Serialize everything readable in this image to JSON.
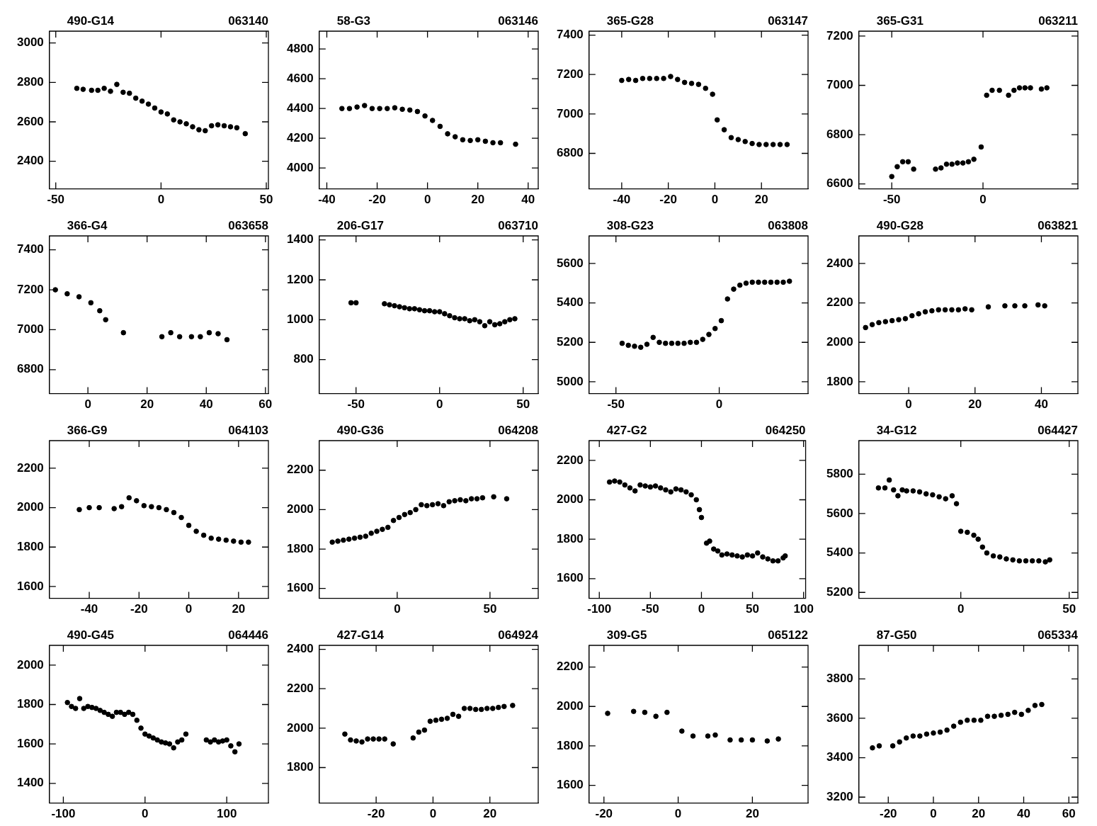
{
  "chart_data": [
    {
      "type": "scatter",
      "title": "490-G14",
      "subtitle": "063140",
      "color": "#000000",
      "marker": "circle",
      "xlim": [
        -53,
        51
      ],
      "ylim": [
        2260,
        3060
      ],
      "xticks": [
        -50,
        0,
        50
      ],
      "yticks": [
        2400,
        2600,
        2800,
        3000
      ],
      "x": [
        -40,
        -37,
        -33,
        -30,
        -27,
        -24,
        -21,
        -18,
        -15,
        -12,
        -9,
        -6,
        -3,
        0,
        3,
        6,
        9,
        12,
        15,
        18,
        21,
        24,
        27,
        30,
        33,
        36,
        40
      ],
      "values": [
        2770,
        2765,
        2760,
        2760,
        2770,
        2755,
        2790,
        2750,
        2745,
        2720,
        2705,
        2690,
        2670,
        2650,
        2640,
        2610,
        2600,
        2590,
        2575,
        2560,
        2555,
        2580,
        2585,
        2580,
        2575,
        2570,
        2540
      ]
    },
    {
      "type": "scatter",
      "title": "58-G3",
      "subtitle": "063146",
      "color": "#000000",
      "marker": "circle",
      "xlim": [
        -43,
        44
      ],
      "ylim": [
        3860,
        4920
      ],
      "xticks": [
        -40,
        -20,
        0,
        20,
        40
      ],
      "yticks": [
        4000,
        4200,
        4400,
        4600,
        4800
      ],
      "x": [
        -34,
        -31,
        -28,
        -25,
        -22,
        -19,
        -16,
        -13,
        -10,
        -7,
        -4,
        -1,
        2,
        5,
        8,
        11,
        14,
        17,
        20,
        23,
        26,
        29,
        35
      ],
      "values": [
        4400,
        4400,
        4410,
        4420,
        4400,
        4400,
        4400,
        4405,
        4395,
        4390,
        4380,
        4350,
        4320,
        4280,
        4230,
        4210,
        4190,
        4185,
        4190,
        4180,
        4170,
        4170,
        4160
      ]
    },
    {
      "type": "scatter",
      "title": "365-G28",
      "subtitle": "063147",
      "color": "#000000",
      "marker": "circle",
      "xlim": [
        -54,
        40
      ],
      "ylim": [
        6620,
        7420
      ],
      "xticks": [
        -40,
        -20,
        0,
        20
      ],
      "yticks": [
        6800,
        7000,
        7200,
        7400
      ],
      "x": [
        -40,
        -37,
        -34,
        -31,
        -28,
        -25,
        -22,
        -19,
        -16,
        -13,
        -10,
        -7,
        -4,
        -1,
        1,
        4,
        7,
        10,
        13,
        16,
        19,
        22,
        25,
        28,
        31
      ],
      "values": [
        7170,
        7175,
        7170,
        7180,
        7180,
        7180,
        7180,
        7190,
        7175,
        7160,
        7155,
        7150,
        7130,
        7100,
        6970,
        6920,
        6880,
        6870,
        6860,
        6850,
        6845,
        6845,
        6845,
        6845,
        6845
      ]
    },
    {
      "type": "scatter",
      "title": "365-G31",
      "subtitle": "063211",
      "color": "#000000",
      "marker": "circle",
      "xlim": [
        -68,
        52
      ],
      "ylim": [
        6580,
        7220
      ],
      "xticks": [
        -50,
        0
      ],
      "yticks": [
        6600,
        6800,
        7000,
        7200
      ],
      "x": [
        -50,
        -47,
        -44,
        -41,
        -38,
        -26,
        -23,
        -20,
        -17,
        -14,
        -11,
        -8,
        -5,
        -1,
        2,
        5,
        9,
        14,
        17,
        20,
        23,
        26,
        32,
        35
      ],
      "values": [
        6630,
        6670,
        6690,
        6690,
        6660,
        6660,
        6665,
        6680,
        6680,
        6685,
        6685,
        6690,
        6700,
        6750,
        6960,
        6980,
        6980,
        6960,
        6980,
        6990,
        6990,
        6990,
        6985,
        6990
      ]
    },
    {
      "type": "scatter",
      "title": "366-G4",
      "subtitle": "063658",
      "color": "#000000",
      "marker": "circle",
      "xlim": [
        -13,
        61
      ],
      "ylim": [
        6680,
        7470
      ],
      "xticks": [
        0,
        20,
        40,
        60
      ],
      "yticks": [
        6800,
        7000,
        7200,
        7400
      ],
      "x": [
        -11,
        -7,
        -3,
        1,
        4,
        6,
        12,
        25,
        28,
        31,
        35,
        38,
        41,
        44,
        47
      ],
      "values": [
        7200,
        7180,
        7165,
        7135,
        7095,
        7050,
        6985,
        6965,
        6985,
        6965,
        6965,
        6965,
        6985,
        6980,
        6950
      ]
    },
    {
      "type": "scatter",
      "title": "206-G17",
      "subtitle": "063710",
      "color": "#000000",
      "marker": "circle",
      "xlim": [
        -72,
        59
      ],
      "ylim": [
        630,
        1420
      ],
      "xticks": [
        -50,
        0,
        50
      ],
      "yticks": [
        800,
        1000,
        1200,
        1400
      ],
      "x": [
        -53,
        -50,
        -33,
        -30,
        -27,
        -24,
        -21,
        -18,
        -15,
        -12,
        -9,
        -6,
        -3,
        0,
        3,
        6,
        9,
        12,
        15,
        18,
        21,
        24,
        27,
        30,
        33,
        36,
        39,
        42,
        45
      ],
      "values": [
        1085,
        1085,
        1080,
        1075,
        1070,
        1065,
        1060,
        1055,
        1055,
        1050,
        1045,
        1045,
        1040,
        1040,
        1030,
        1020,
        1010,
        1005,
        1005,
        995,
        1000,
        990,
        970,
        990,
        975,
        980,
        990,
        1000,
        1005
      ]
    },
    {
      "type": "scatter",
      "title": "308-G23",
      "subtitle": "063808",
      "color": "#000000",
      "marker": "circle",
      "xlim": [
        -63,
        43
      ],
      "ylim": [
        4940,
        5740
      ],
      "xticks": [
        -50,
        0
      ],
      "yticks": [
        5000,
        5200,
        5400,
        5600
      ],
      "x": [
        -47,
        -44,
        -41,
        -38,
        -35,
        -32,
        -29,
        -26,
        -23,
        -20,
        -17,
        -14,
        -11,
        -8,
        -5,
        -2,
        1,
        4,
        7,
        10,
        13,
        16,
        19,
        22,
        25,
        28,
        31,
        34
      ],
      "values": [
        5195,
        5185,
        5180,
        5175,
        5190,
        5225,
        5200,
        5195,
        5195,
        5195,
        5195,
        5200,
        5200,
        5215,
        5240,
        5270,
        5310,
        5420,
        5470,
        5490,
        5500,
        5505,
        5505,
        5505,
        5505,
        5505,
        5505,
        5510
      ]
    },
    {
      "type": "scatter",
      "title": "490-G28",
      "subtitle": "063821",
      "color": "#000000",
      "marker": "circle",
      "xlim": [
        -15,
        51
      ],
      "ylim": [
        1740,
        2540
      ],
      "xticks": [
        0,
        20,
        40
      ],
      "yticks": [
        1800,
        2000,
        2200,
        2400
      ],
      "x": [
        -13,
        -11,
        -9,
        -7,
        -5,
        -3,
        -1,
        1,
        3,
        5,
        7,
        9,
        11,
        13,
        15,
        17,
        19,
        24,
        29,
        32,
        35,
        39,
        41
      ],
      "values": [
        2075,
        2090,
        2100,
        2105,
        2110,
        2115,
        2120,
        2135,
        2145,
        2155,
        2160,
        2165,
        2165,
        2165,
        2165,
        2170,
        2165,
        2180,
        2185,
        2185,
        2185,
        2190,
        2185
      ]
    },
    {
      "type": "scatter",
      "title": "366-G9",
      "subtitle": "064103",
      "color": "#000000",
      "marker": "circle",
      "xlim": [
        -56,
        32
      ],
      "ylim": [
        1540,
        2340
      ],
      "xticks": [
        -40,
        -20,
        0,
        20
      ],
      "yticks": [
        1600,
        1800,
        2000,
        2200
      ],
      "x": [
        -44,
        -40,
        -36,
        -30,
        -27,
        -24,
        -21,
        -18,
        -15,
        -12,
        -9,
        -6,
        -3,
        0,
        3,
        6,
        9,
        12,
        15,
        18,
        21,
        24
      ],
      "values": [
        1990,
        2000,
        2000,
        1995,
        2005,
        2050,
        2035,
        2010,
        2005,
        2000,
        1990,
        1975,
        1950,
        1910,
        1880,
        1860,
        1845,
        1840,
        1835,
        1830,
        1825,
        1825
      ]
    },
    {
      "type": "scatter",
      "title": "490-G36",
      "subtitle": "064208",
      "color": "#000000",
      "marker": "circle",
      "xlim": [
        -42,
        76
      ],
      "ylim": [
        1550,
        2350
      ],
      "xticks": [
        0,
        50
      ],
      "yticks": [
        1600,
        1800,
        2000,
        2200
      ],
      "x": [
        -35,
        -32,
        -29,
        -26,
        -23,
        -20,
        -17,
        -14,
        -11,
        -8,
        -5,
        -2,
        1,
        4,
        7,
        10,
        13,
        16,
        19,
        22,
        25,
        28,
        31,
        34,
        37,
        40,
        43,
        46,
        52,
        59
      ],
      "values": [
        1835,
        1840,
        1845,
        1850,
        1855,
        1860,
        1865,
        1880,
        1890,
        1900,
        1910,
        1945,
        1960,
        1975,
        1985,
        2000,
        2025,
        2020,
        2025,
        2030,
        2020,
        2040,
        2045,
        2050,
        2045,
        2055,
        2055,
        2060,
        2065,
        2055
      ]
    },
    {
      "type": "scatter",
      "title": "427-G2",
      "subtitle": "064250",
      "color": "#000000",
      "marker": "circle",
      "xlim": [
        -110,
        102
      ],
      "ylim": [
        1500,
        2300
      ],
      "xticks": [
        -100,
        -50,
        0,
        50,
        100
      ],
      "yticks": [
        1600,
        1800,
        2000,
        2200
      ],
      "x": [
        -90,
        -85,
        -80,
        -75,
        -70,
        -65,
        -60,
        -55,
        -50,
        -45,
        -40,
        -35,
        -30,
        -25,
        -20,
        -15,
        -10,
        -5,
        -2,
        0,
        5,
        8,
        12,
        16,
        20,
        25,
        30,
        35,
        40,
        45,
        50,
        55,
        60,
        65,
        70,
        75,
        80,
        82
      ],
      "values": [
        2090,
        2095,
        2090,
        2075,
        2060,
        2045,
        2075,
        2070,
        2065,
        2070,
        2060,
        2050,
        2040,
        2055,
        2050,
        2040,
        2025,
        2000,
        1950,
        1910,
        1780,
        1790,
        1750,
        1740,
        1720,
        1725,
        1720,
        1715,
        1710,
        1720,
        1715,
        1730,
        1710,
        1700,
        1690,
        1690,
        1705,
        1715
      ]
    },
    {
      "type": "scatter",
      "title": "34-G12",
      "subtitle": "064427",
      "color": "#000000",
      "marker": "circle",
      "xlim": [
        -47,
        54
      ],
      "ylim": [
        5170,
        5970
      ],
      "xticks": [
        0,
        50
      ],
      "yticks": [
        5200,
        5400,
        5600,
        5800
      ],
      "x": [
        -38,
        -35,
        -33,
        -31,
        -29,
        -27,
        -25,
        -22,
        -19,
        -16,
        -13,
        -10,
        -7,
        -4,
        -2,
        0,
        3,
        6,
        8,
        10,
        12,
        15,
        18,
        21,
        24,
        27,
        30,
        33,
        36,
        39,
        41
      ],
      "values": [
        5730,
        5730,
        5770,
        5720,
        5690,
        5720,
        5715,
        5715,
        5710,
        5700,
        5695,
        5685,
        5675,
        5690,
        5650,
        5510,
        5505,
        5490,
        5470,
        5430,
        5400,
        5385,
        5380,
        5370,
        5365,
        5360,
        5360,
        5360,
        5360,
        5355,
        5365
      ]
    },
    {
      "type": "scatter",
      "title": "490-G45",
      "subtitle": "064446",
      "color": "#000000",
      "marker": "circle",
      "xlim": [
        -117,
        151
      ],
      "ylim": [
        1300,
        2100
      ],
      "xticks": [
        -100,
        0,
        100
      ],
      "yticks": [
        1400,
        1600,
        1800,
        2000
      ],
      "x": [
        -95,
        -90,
        -85,
        -80,
        -75,
        -70,
        -65,
        -60,
        -55,
        -50,
        -45,
        -40,
        -35,
        -30,
        -25,
        -20,
        -15,
        -10,
        -5,
        0,
        5,
        10,
        15,
        20,
        25,
        30,
        35,
        40,
        45,
        50,
        75,
        80,
        85,
        90,
        95,
        100,
        105,
        110,
        115
      ],
      "values": [
        1810,
        1790,
        1780,
        1830,
        1780,
        1790,
        1785,
        1780,
        1770,
        1760,
        1750,
        1740,
        1760,
        1760,
        1750,
        1760,
        1750,
        1720,
        1680,
        1650,
        1640,
        1630,
        1620,
        1610,
        1605,
        1600,
        1580,
        1610,
        1620,
        1650,
        1620,
        1610,
        1620,
        1610,
        1615,
        1620,
        1590,
        1560,
        1600
      ]
    },
    {
      "type": "scatter",
      "title": "427-G14",
      "subtitle": "064924",
      "color": "#000000",
      "marker": "circle",
      "xlim": [
        -40,
        37
      ],
      "ylim": [
        1620,
        2420
      ],
      "xticks": [
        -20,
        0,
        20
      ],
      "yticks": [
        1800,
        2000,
        2200,
        2400
      ],
      "x": [
        -31,
        -29,
        -27,
        -25,
        -23,
        -21,
        -19,
        -17,
        -14,
        -7,
        -5,
        -3,
        -1,
        1,
        3,
        5,
        7,
        9,
        11,
        13,
        15,
        17,
        19,
        21,
        23,
        25,
        28
      ],
      "values": [
        1970,
        1940,
        1935,
        1930,
        1945,
        1945,
        1945,
        1945,
        1920,
        1950,
        1980,
        1990,
        2035,
        2040,
        2045,
        2050,
        2070,
        2060,
        2100,
        2100,
        2095,
        2095,
        2100,
        2100,
        2105,
        2110,
        2115
      ]
    },
    {
      "type": "scatter",
      "title": "309-G5",
      "subtitle": "065122",
      "color": "#000000",
      "marker": "circle",
      "xlim": [
        -24,
        35
      ],
      "ylim": [
        1510,
        2310
      ],
      "xticks": [
        -20,
        0,
        20
      ],
      "yticks": [
        1600,
        1800,
        2000,
        2200
      ],
      "x": [
        -19,
        -12,
        -9,
        -6,
        -3,
        1,
        4,
        8,
        10,
        14,
        17,
        20,
        24,
        27
      ],
      "values": [
        1965,
        1975,
        1970,
        1950,
        1970,
        1875,
        1850,
        1850,
        1855,
        1830,
        1830,
        1830,
        1825,
        1835
      ]
    },
    {
      "type": "scatter",
      "title": "87-G50",
      "subtitle": "065334",
      "color": "#000000",
      "marker": "circle",
      "xlim": [
        -33,
        64
      ],
      "ylim": [
        3170,
        3970
      ],
      "xticks": [
        -20,
        0,
        20,
        40,
        60
      ],
      "yticks": [
        3200,
        3400,
        3600,
        3800
      ],
      "x": [
        -27,
        -24,
        -18,
        -15,
        -12,
        -9,
        -6,
        -3,
        0,
        3,
        6,
        9,
        12,
        15,
        18,
        21,
        24,
        27,
        30,
        33,
        36,
        39,
        42,
        45,
        48
      ],
      "values": [
        3450,
        3460,
        3460,
        3480,
        3500,
        3510,
        3510,
        3520,
        3525,
        3530,
        3540,
        3560,
        3580,
        3590,
        3590,
        3590,
        3610,
        3610,
        3615,
        3620,
        3630,
        3620,
        3640,
        3665,
        3670
      ]
    }
  ]
}
